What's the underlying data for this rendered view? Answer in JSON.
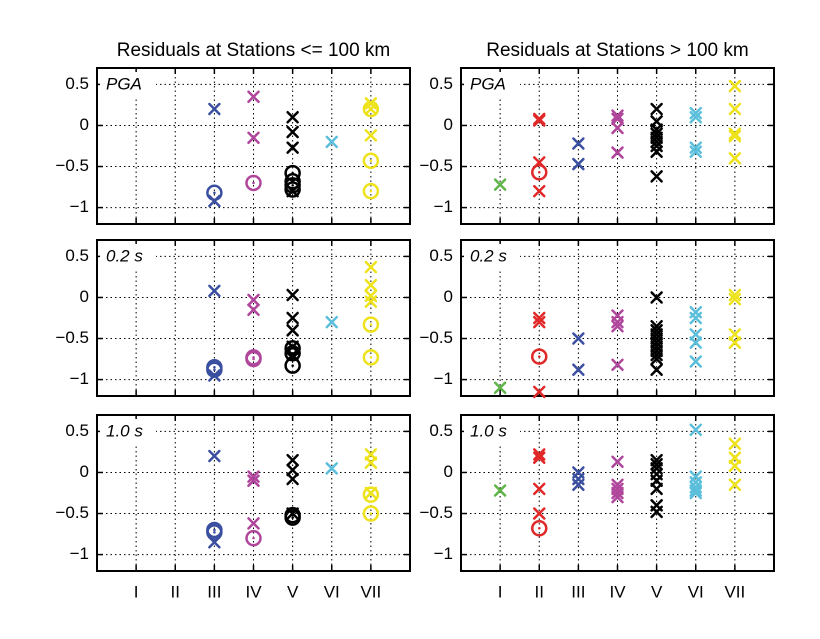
{
  "chart_data": [
    {
      "type": "scatter",
      "title": "Residuals at Stations <= 100 km",
      "annotation": "PGA",
      "xlim": [
        0,
        8
      ],
      "ylim": [
        -1.2,
        0.7
      ],
      "grid": true,
      "xticklabels": false,
      "xticks": [
        1,
        2,
        3,
        4,
        5,
        6,
        7
      ],
      "yticks": [
        {
          "value": -1,
          "label": "−1"
        },
        {
          "value": -0.5,
          "label": "−0.5"
        },
        0,
        0.5
      ],
      "series": [
        {
          "color": "#3a4fa0",
          "marker": "x",
          "x": [
            3,
            3
          ],
          "values": [
            0.2,
            -0.92
          ]
        },
        {
          "color": "#3a4fa0",
          "marker": "o",
          "x": [
            3
          ],
          "values": [
            -0.82
          ]
        },
        {
          "color": "#b0469b",
          "marker": "x",
          "x": [
            4,
            4
          ],
          "values": [
            0.35,
            -0.15
          ]
        },
        {
          "color": "#b0469b",
          "marker": "o",
          "x": [
            4
          ],
          "values": [
            -0.7
          ]
        },
        {
          "color": "#000000",
          "marker": "x",
          "x": [
            5,
            5,
            5,
            5
          ],
          "values": [
            0.1,
            -0.08,
            -0.27,
            -0.8
          ]
        },
        {
          "color": "#000000",
          "marker": "o",
          "x": [
            5,
            5,
            5,
            5
          ],
          "values": [
            -0.58,
            -0.68,
            -0.73,
            -0.78
          ]
        },
        {
          "color": "#5bbfdc",
          "marker": "x",
          "x": [
            6
          ],
          "values": [
            -0.2
          ]
        },
        {
          "color": "#eee21a",
          "marker": "x",
          "x": [
            7,
            7,
            7
          ],
          "values": [
            0.27,
            0.2,
            -0.12
          ]
        },
        {
          "color": "#eee21a",
          "marker": "o",
          "x": [
            7,
            7,
            7
          ],
          "values": [
            0.2,
            -0.43,
            -0.8
          ]
        }
      ]
    },
    {
      "type": "scatter",
      "title": "Residuals at Stations > 100 km",
      "annotation": "PGA",
      "xlim": [
        0,
        8
      ],
      "ylim": [
        -1.2,
        0.7
      ],
      "grid": true,
      "xticklabels": false,
      "xticks": [
        1,
        2,
        3,
        4,
        5,
        6,
        7
      ],
      "yticks": [
        {
          "value": -1,
          "label": "−1"
        },
        {
          "value": -0.5,
          "label": "−0.5"
        },
        0,
        0.5
      ],
      "series": [
        {
          "color": "#5fb548",
          "marker": "x",
          "x": [
            1
          ],
          "values": [
            -0.72
          ]
        },
        {
          "color": "#e02828",
          "marker": "x",
          "x": [
            2,
            2,
            2,
            2
          ],
          "values": [
            0.08,
            0.06,
            -0.45,
            -0.8
          ]
        },
        {
          "color": "#e02828",
          "marker": "o",
          "x": [
            2
          ],
          "values": [
            -0.57
          ]
        },
        {
          "color": "#3a4fa0",
          "marker": "x",
          "x": [
            3,
            3
          ],
          "values": [
            -0.22,
            -0.47
          ]
        },
        {
          "color": "#b0469b",
          "marker": "x",
          "x": [
            4,
            4,
            4,
            4
          ],
          "values": [
            0.12,
            0.08,
            -0.03,
            -0.33
          ]
        },
        {
          "color": "#000000",
          "marker": "x",
          "x": [
            5,
            5,
            5,
            5,
            5,
            5,
            5,
            5,
            5
          ],
          "values": [
            0.2,
            0.05,
            -0.05,
            -0.1,
            -0.15,
            -0.2,
            -0.25,
            -0.32,
            -0.62
          ]
        },
        {
          "color": "#5bbfdc",
          "marker": "x",
          "x": [
            6,
            6,
            6,
            6
          ],
          "values": [
            0.15,
            0.1,
            -0.27,
            -0.32
          ]
        },
        {
          "color": "#eee21a",
          "marker": "x",
          "x": [
            7,
            7,
            7,
            7,
            7
          ],
          "values": [
            0.48,
            0.2,
            -0.1,
            -0.13,
            -0.4
          ]
        }
      ]
    },
    {
      "type": "scatter",
      "annotation": "0.2 s",
      "xlim": [
        0,
        8
      ],
      "ylim": [
        -1.2,
        0.7
      ],
      "grid": true,
      "xticklabels": false,
      "xticks": [
        1,
        2,
        3,
        4,
        5,
        6,
        7
      ],
      "yticks": [
        {
          "value": -1,
          "label": "−1"
        },
        {
          "value": -0.5,
          "label": "−0.5"
        },
        0,
        0.5
      ],
      "series": [
        {
          "color": "#3a4fa0",
          "marker": "x",
          "x": [
            3,
            3
          ],
          "values": [
            0.08,
            -0.95
          ]
        },
        {
          "color": "#3a4fa0",
          "marker": "o",
          "x": [
            3,
            3
          ],
          "values": [
            -0.85,
            -0.88
          ]
        },
        {
          "color": "#b0469b",
          "marker": "x",
          "x": [
            4,
            4
          ],
          "values": [
            -0.03,
            -0.15
          ]
        },
        {
          "color": "#b0469b",
          "marker": "o",
          "x": [
            4,
            4
          ],
          "values": [
            -0.73,
            -0.75
          ]
        },
        {
          "color": "#000000",
          "marker": "x",
          "x": [
            5,
            5,
            5,
            5,
            5
          ],
          "values": [
            0.03,
            -0.25,
            -0.4,
            -0.6,
            -0.7
          ]
        },
        {
          "color": "#000000",
          "marker": "o",
          "x": [
            5,
            5,
            5
          ],
          "values": [
            -0.62,
            -0.68,
            -0.83
          ]
        },
        {
          "color": "#5bbfdc",
          "marker": "x",
          "x": [
            6
          ],
          "values": [
            -0.3
          ]
        },
        {
          "color": "#eee21a",
          "marker": "x",
          "x": [
            7,
            7,
            7,
            7
          ],
          "values": [
            0.37,
            0.15,
            0.02,
            -0.05
          ]
        },
        {
          "color": "#eee21a",
          "marker": "o",
          "x": [
            7,
            7
          ],
          "values": [
            -0.33,
            -0.73
          ]
        }
      ]
    },
    {
      "type": "scatter",
      "annotation": "0.2 s",
      "xlim": [
        0,
        8
      ],
      "ylim": [
        -1.2,
        0.7
      ],
      "grid": true,
      "xticklabels": false,
      "xticks": [
        1,
        2,
        3,
        4,
        5,
        6,
        7
      ],
      "yticks": [
        {
          "value": -1,
          "label": "−1"
        },
        {
          "value": -0.5,
          "label": "−0.5"
        },
        0,
        0.5
      ],
      "series": [
        {
          "color": "#5fb548",
          "marker": "x",
          "x": [
            1
          ],
          "values": [
            -1.1
          ]
        },
        {
          "color": "#e02828",
          "marker": "x",
          "x": [
            2,
            2,
            2
          ],
          "values": [
            -0.25,
            -0.3,
            -1.15
          ]
        },
        {
          "color": "#e02828",
          "marker": "o",
          "x": [
            2
          ],
          "values": [
            -0.72
          ]
        },
        {
          "color": "#3a4fa0",
          "marker": "x",
          "x": [
            3,
            3
          ],
          "values": [
            -0.5,
            -0.88
          ]
        },
        {
          "color": "#b0469b",
          "marker": "x",
          "x": [
            4,
            4,
            4,
            4
          ],
          "values": [
            -0.22,
            -0.3,
            -0.35,
            -0.82
          ]
        },
        {
          "color": "#000000",
          "marker": "x",
          "x": [
            5,
            5,
            5,
            5,
            5,
            5,
            5,
            5,
            5,
            5,
            5
          ],
          "values": [
            0,
            -0.35,
            -0.4,
            -0.45,
            -0.5,
            -0.55,
            -0.6,
            -0.65,
            -0.7,
            -0.75,
            -0.88
          ]
        },
        {
          "color": "#5bbfdc",
          "marker": "x",
          "x": [
            6,
            6,
            6,
            6,
            6
          ],
          "values": [
            -0.18,
            -0.25,
            -0.45,
            -0.55,
            -0.78
          ]
        },
        {
          "color": "#eee21a",
          "marker": "x",
          "x": [
            7,
            7,
            7,
            7
          ],
          "values": [
            0.03,
            -0.02,
            -0.45,
            -0.55
          ]
        }
      ]
    },
    {
      "type": "scatter",
      "annotation": "1.0 s",
      "xlim": [
        0,
        8
      ],
      "ylim": [
        -1.2,
        0.7
      ],
      "grid": true,
      "xticklabels": true,
      "xticks": [
        {
          "value": 1,
          "label": "I"
        },
        {
          "value": 2,
          "label": "II"
        },
        {
          "value": 3,
          "label": "III"
        },
        {
          "value": 4,
          "label": "IV"
        },
        {
          "value": 5,
          "label": "V"
        },
        {
          "value": 6,
          "label": "VI"
        },
        {
          "value": 7,
          "label": "VII"
        }
      ],
      "yticks": [
        {
          "value": -1,
          "label": "−1"
        },
        {
          "value": -0.5,
          "label": "−0.5"
        },
        0,
        0.5
      ],
      "series": [
        {
          "color": "#3a4fa0",
          "marker": "x",
          "x": [
            3,
            3
          ],
          "values": [
            0.2,
            -0.85
          ]
        },
        {
          "color": "#3a4fa0",
          "marker": "o",
          "x": [
            3,
            3
          ],
          "values": [
            -0.7,
            -0.73
          ]
        },
        {
          "color": "#b0469b",
          "marker": "x",
          "x": [
            4,
            4,
            4
          ],
          "values": [
            -0.05,
            -0.1,
            -0.62
          ]
        },
        {
          "color": "#b0469b",
          "marker": "o",
          "x": [
            4
          ],
          "values": [
            -0.8
          ]
        },
        {
          "color": "#000000",
          "marker": "x",
          "x": [
            5,
            5,
            5,
            5
          ],
          "values": [
            0.15,
            0.03,
            -0.08,
            -0.5
          ]
        },
        {
          "color": "#000000",
          "marker": "o",
          "x": [
            5,
            5
          ],
          "values": [
            -0.52,
            -0.55
          ]
        },
        {
          "color": "#5bbfdc",
          "marker": "x",
          "x": [
            6
          ],
          "values": [
            0.05
          ]
        },
        {
          "color": "#eee21a",
          "marker": "x",
          "x": [
            7,
            7,
            7
          ],
          "values": [
            0.22,
            0.12,
            -0.25
          ]
        },
        {
          "color": "#eee21a",
          "marker": "o",
          "x": [
            7,
            7
          ],
          "values": [
            -0.27,
            -0.5
          ]
        }
      ]
    },
    {
      "type": "scatter",
      "annotation": "1.0 s",
      "xlim": [
        0,
        8
      ],
      "ylim": [
        -1.2,
        0.7
      ],
      "grid": true,
      "xticklabels": true,
      "xticks": [
        {
          "value": 1,
          "label": "I"
        },
        {
          "value": 2,
          "label": "II"
        },
        {
          "value": 3,
          "label": "III"
        },
        {
          "value": 4,
          "label": "IV"
        },
        {
          "value": 5,
          "label": "V"
        },
        {
          "value": 6,
          "label": "VI"
        },
        {
          "value": 7,
          "label": "VII"
        }
      ],
      "yticks": [
        {
          "value": -1,
          "label": "−1"
        },
        {
          "value": -0.5,
          "label": "−0.5"
        },
        0,
        0.5
      ],
      "series": [
        {
          "color": "#5fb548",
          "marker": "x",
          "x": [
            1
          ],
          "values": [
            -0.22
          ]
        },
        {
          "color": "#e02828",
          "marker": "x",
          "x": [
            2,
            2,
            2,
            2
          ],
          "values": [
            0.22,
            0.18,
            -0.2,
            -0.5
          ]
        },
        {
          "color": "#e02828",
          "marker": "o",
          "x": [
            2
          ],
          "values": [
            -0.68
          ]
        },
        {
          "color": "#3a4fa0",
          "marker": "x",
          "x": [
            3,
            3,
            3
          ],
          "values": [
            0,
            -0.08,
            -0.15
          ]
        },
        {
          "color": "#b0469b",
          "marker": "x",
          "x": [
            4,
            4,
            4,
            4,
            4
          ],
          "values": [
            0.13,
            -0.15,
            -0.2,
            -0.25,
            -0.3
          ]
        },
        {
          "color": "#000000",
          "marker": "x",
          "x": [
            5,
            5,
            5,
            5,
            5,
            5,
            5,
            5
          ],
          "values": [
            0.15,
            0.1,
            0.05,
            -0.02,
            -0.1,
            -0.2,
            -0.4,
            -0.48
          ]
        },
        {
          "color": "#5bbfdc",
          "marker": "x",
          "x": [
            6,
            6,
            6,
            6,
            6,
            6
          ],
          "values": [
            0.52,
            -0.05,
            -0.12,
            -0.18,
            -0.22,
            -0.25
          ]
        },
        {
          "color": "#eee21a",
          "marker": "x",
          "x": [
            7,
            7,
            7,
            7
          ],
          "values": [
            0.35,
            0.18,
            0.08,
            -0.15
          ]
        }
      ]
    }
  ]
}
